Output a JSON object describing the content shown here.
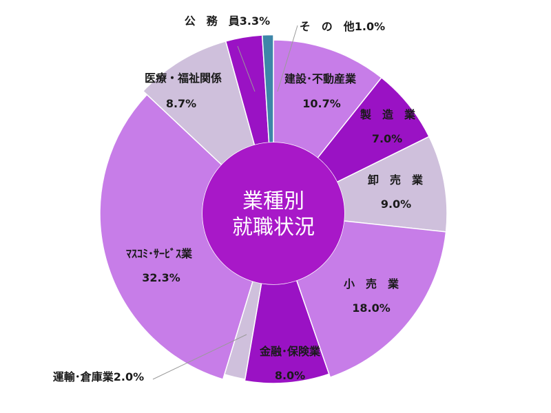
{
  "chart_data": {
    "type": "pie",
    "center_title": [
      "業種別",
      "就職状況"
    ],
    "slices": [
      {
        "name": "建設･不動産業",
        "value": 10.7,
        "value_label": "10.7%",
        "color": "#c77de8"
      },
      {
        "name": "製　造　業",
        "value": 7.0,
        "value_label": "7.0%",
        "color": "#9a12c4"
      },
      {
        "name": "卸　売　業",
        "value": 9.0,
        "value_label": "9.0%",
        "color": "#cfc0dc"
      },
      {
        "name": "小　売　業",
        "value": 18.0,
        "value_label": "18.0%",
        "color": "#c77de8"
      },
      {
        "name": "金融･保険業",
        "value": 8.0,
        "value_label": "8.0%",
        "color": "#9a12c4"
      },
      {
        "name": "運輸･倉庫業",
        "value": 2.0,
        "value_label": "2.0%",
        "color": "#cfc0dc"
      },
      {
        "name": "ﾏｽｺﾐ･ｻｰﾋﾞｽ業",
        "value": 32.3,
        "value_label": "32.3%",
        "color": "#c77de8"
      },
      {
        "name": "医療・福祉関係",
        "value": 8.7,
        "value_label": "8.7%",
        "color": "#cfc0dc"
      },
      {
        "name": "公　務　員",
        "value": 3.3,
        "value_label": "3.3%",
        "color": "#9a12c4"
      },
      {
        "name": "そ　の　他",
        "value": 1.0,
        "value_label": "1.0%",
        "color": "#3d86a8"
      }
    ],
    "center_color": "#a818c8"
  }
}
